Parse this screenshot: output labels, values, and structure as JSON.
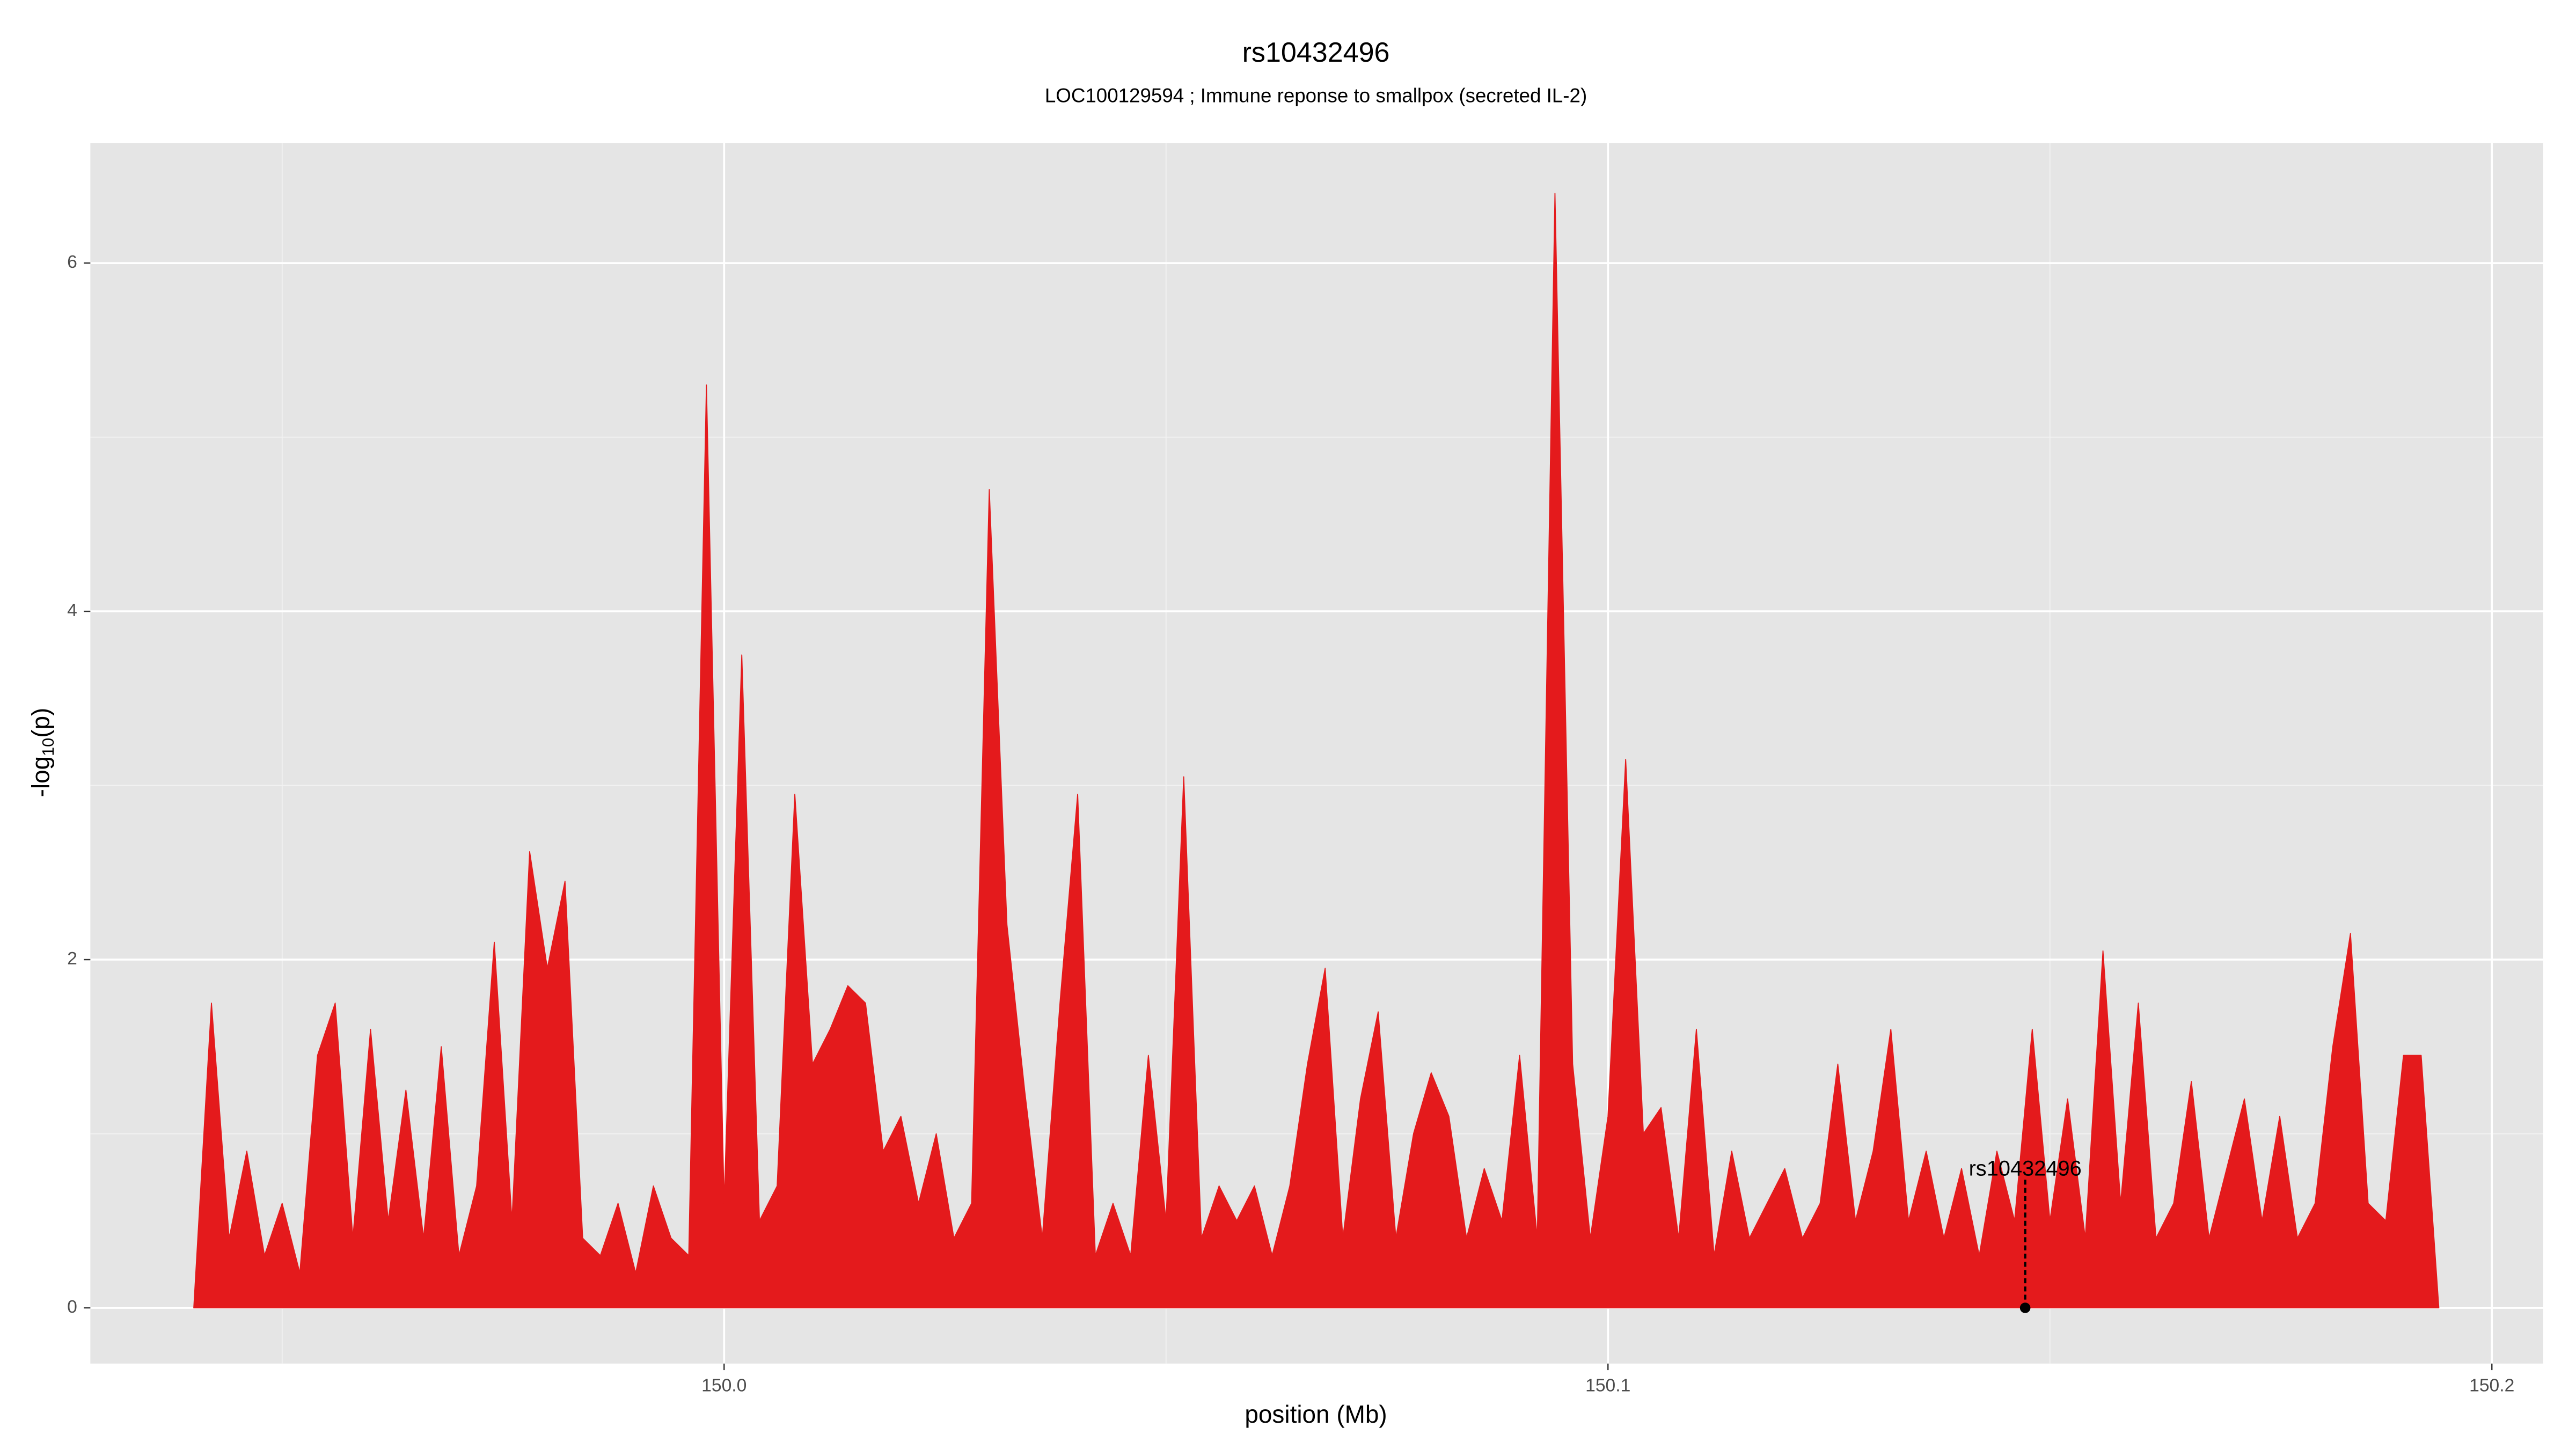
{
  "chart_data": {
    "type": "area",
    "title": "rs10432496",
    "subtitle": "LOC100129594 ; Immune reponse to smallpox (secreted IL-2)",
    "x_label": "position (Mb)",
    "y_label_main": "-log",
    "y_label_sub": "10",
    "y_label_end": "(p)",
    "xlim": [
      149.9283,
      150.2058
    ],
    "ylim": [
      -0.32,
      6.69
    ],
    "xticks": [
      {
        "value": 150,
        "label": "150.0"
      },
      150.1,
      150.2
    ],
    "yticks": [
      0,
      2,
      4,
      6
    ],
    "grid": true,
    "x": [
      149.94,
      149.942,
      149.944,
      149.946,
      149.948,
      149.95,
      149.952,
      149.954,
      149.956,
      149.958,
      149.96,
      149.962,
      149.964,
      149.966,
      149.968,
      149.97,
      149.972,
      149.974,
      149.976,
      149.978,
      149.98,
      149.982,
      149.984,
      149.986,
      149.988,
      149.99,
      149.992,
      149.994,
      149.996,
      149.998,
      150.0,
      150.002,
      150.004,
      150.006,
      150.008,
      150.01,
      150.012,
      150.014,
      150.016,
      150.018,
      150.02,
      150.022,
      150.024,
      150.026,
      150.028,
      150.03,
      150.032,
      150.034,
      150.036,
      150.038,
      150.04,
      150.042,
      150.044,
      150.046,
      150.048,
      150.05,
      150.052,
      150.054,
      150.056,
      150.058,
      150.06,
      150.062,
      150.064,
      150.066,
      150.068,
      150.07,
      150.072,
      150.074,
      150.076,
      150.078,
      150.08,
      150.082,
      150.084,
      150.086,
      150.088,
      150.09,
      150.092,
      150.094,
      150.096,
      150.098,
      150.1,
      150.102,
      150.104,
      150.106,
      150.108,
      150.11,
      150.112,
      150.114,
      150.116,
      150.118,
      150.12,
      150.122,
      150.124,
      150.126,
      150.128,
      150.13,
      150.132,
      150.134,
      150.136,
      150.138,
      150.14,
      150.142,
      150.144,
      150.146,
      150.148,
      150.15,
      150.152,
      150.154,
      150.156,
      150.158,
      150.16,
      150.162,
      150.164,
      150.166,
      150.168,
      150.17,
      150.172,
      150.174,
      150.176,
      150.178,
      150.18,
      150.182,
      150.184,
      150.186,
      150.188,
      150.19,
      150.192,
      150.194
    ],
    "series": [
      {
        "color": "#e41a1c",
        "values": [
          0,
          1.75,
          0.4,
          0.9,
          0.3,
          0.6,
          0.2,
          1.45,
          1.75,
          0.4,
          1.6,
          0.5,
          1.25,
          0.4,
          1.5,
          0.3,
          0.7,
          2.1,
          0.5,
          2.62,
          1.95,
          2.45,
          0.4,
          0.3,
          0.6,
          0.2,
          0.7,
          0.4,
          0.3,
          5.3,
          0.6,
          3.75,
          0.5,
          0.7,
          2.95,
          1.4,
          1.6,
          1.85,
          1.75,
          0.9,
          1.1,
          0.6,
          1.0,
          0.4,
          0.6,
          4.7,
          2.2,
          1.25,
          0.4,
          1.75,
          2.95,
          0.3,
          0.6,
          0.3,
          1.45,
          0.5,
          3.05,
          0.4,
          0.7,
          0.5,
          0.7,
          0.3,
          0.7,
          1.4,
          1.95,
          0.4,
          1.2,
          1.7,
          0.4,
          1.0,
          1.35,
          1.1,
          0.4,
          0.8,
          0.5,
          1.45,
          0.4,
          6.4,
          1.4,
          0.4,
          1.1,
          3.15,
          1.0,
          1.15,
          0.4,
          1.6,
          0.3,
          0.9,
          0.4,
          0.6,
          0.8,
          0.4,
          0.6,
          1.4,
          0.5,
          0.9,
          1.6,
          0.5,
          0.9,
          0.4,
          0.8,
          0.3,
          0.9,
          0.5,
          1.6,
          0.5,
          1.2,
          0.4,
          2.05,
          0.6,
          1.75,
          0.4,
          0.6,
          1.3,
          0.4,
          0.8,
          1.2,
          0.5,
          1.1,
          0.4,
          0.6,
          1.5,
          2.15,
          0.6,
          0.5,
          1.45,
          1.45,
          0
        ]
      }
    ],
    "highlight": {
      "label": "rs10432496",
      "x": 150.1472,
      "y": 0
    }
  }
}
